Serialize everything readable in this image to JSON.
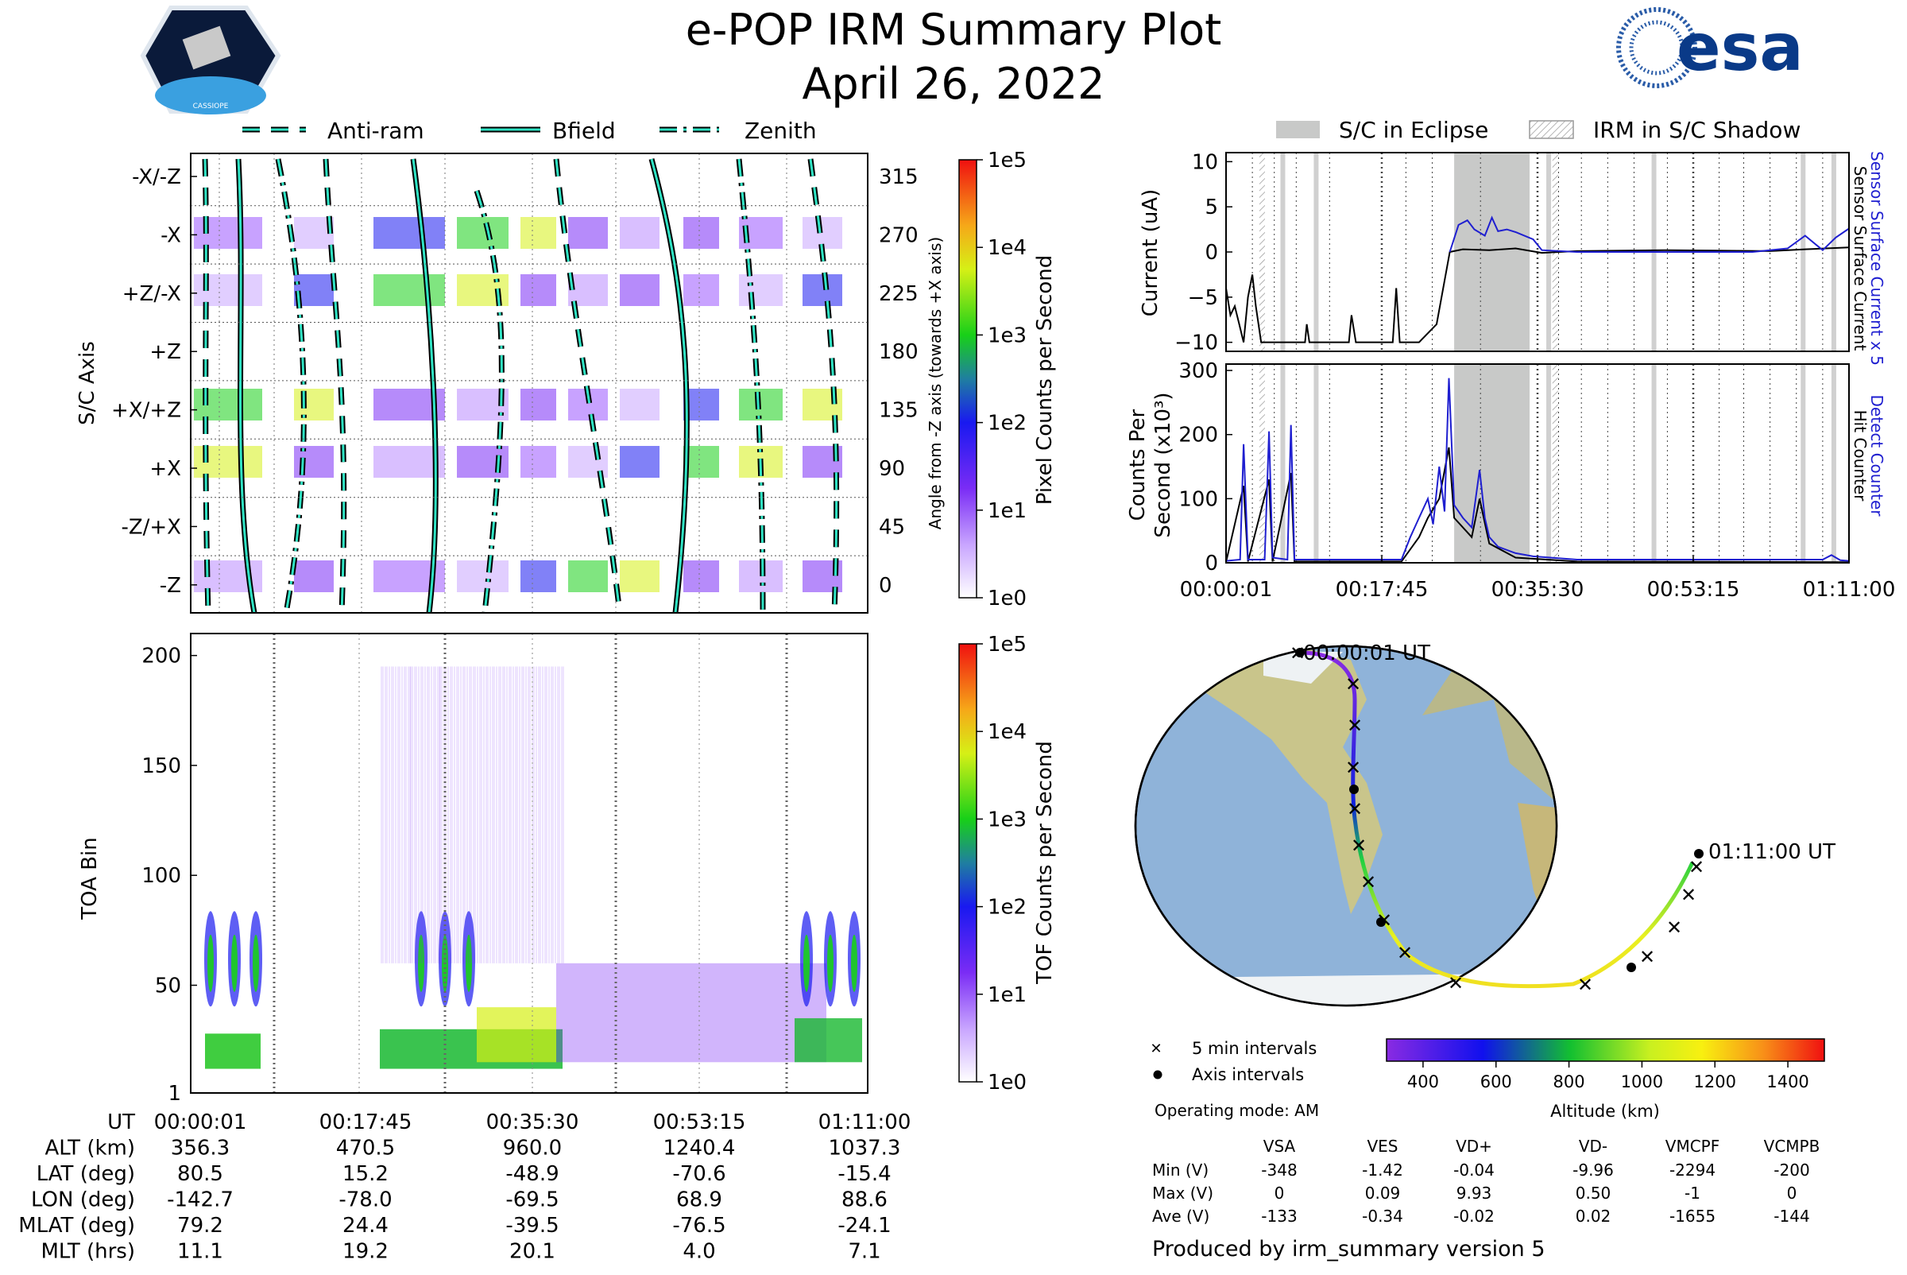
{
  "title": "e-POP IRM Summary Plot",
  "date": "April 26, 2022",
  "logo_left": "CASSIOPE",
  "logo_right": "esa",
  "colors": {
    "cyan": "#2fe3c4",
    "blue_trace": "#1f1fd0",
    "eclipse_gray": "#c8c9c8",
    "dark": "#000000"
  },
  "chart_data": [
    {
      "type": "heatmap",
      "name": "angle-panel",
      "legend": [
        "Anti-ram",
        "Bfield",
        "Zenith"
      ],
      "ylabel": "S/C Axis",
      "y_ticks_left": [
        "-X/-Z",
        "-X",
        "+Z/-X",
        "+Z",
        "+X/+Z",
        "+X",
        "-Z/+X",
        "-Z"
      ],
      "y_ticks_right": [
        "315",
        "270",
        "225",
        "180",
        "135",
        "90",
        "45",
        "0"
      ],
      "ylabel_right": "Angle from -Z axis (towards +X axis)",
      "colorbar_label": "Pixel Counts per Second",
      "colorbar_ticks": [
        "1e5",
        "1e4",
        "1e3",
        "1e2",
        "1e1",
        "1e0"
      ]
    },
    {
      "type": "heatmap",
      "name": "toa-panel",
      "ylabel": "TOA Bin",
      "y_ticks": [
        "200",
        "150",
        "100",
        "50",
        "1"
      ],
      "ylim": [
        1,
        210
      ],
      "colorbar_label": "TOF Counts per Second",
      "colorbar_ticks": [
        "1e5",
        "1e4",
        "1e3",
        "1e2",
        "1e1",
        "1e0"
      ]
    },
    {
      "type": "line",
      "name": "current-panel",
      "legend": [
        "S/C in Eclipse",
        "IRM in S/C Shadow"
      ],
      "ylabel": "Current (uA)",
      "y_ticks": [
        "10",
        "5",
        "0",
        "−5",
        "−10"
      ],
      "ylim": [
        -11,
        11
      ],
      "right_label_blue": "Sensor Surface Current x 5",
      "right_label_black": "Sensor Surface Current",
      "eclipse_minutes": [
        26.0,
        34.6
      ]
    },
    {
      "type": "line",
      "name": "counts-panel",
      "ylabel_line1": "Counts Per",
      "ylabel_line2": "Second (x10³)",
      "y_ticks": [
        "300",
        "200",
        "100",
        "0"
      ],
      "ylim": [
        0,
        310
      ],
      "right_label_blue": "Detect Counter",
      "right_label_black": "Hit Counter",
      "x_ticks": [
        "00:00:01",
        "00:17:45",
        "00:35:30",
        "00:53:15",
        "01:11:00"
      ],
      "series": [
        {
          "name": "Detect Counter",
          "points": [
            [
              0,
              3
            ],
            [
              1.6,
              5
            ],
            [
              2.0,
              185
            ],
            [
              2.5,
              5
            ],
            [
              4.4,
              5
            ],
            [
              4.9,
              205
            ],
            [
              5.3,
              8
            ],
            [
              7.0,
              5
            ],
            [
              7.4,
              215
            ],
            [
              7.8,
              5
            ],
            [
              20,
              5
            ],
            [
              21,
              40
            ],
            [
              22,
              70
            ],
            [
              23,
              100
            ],
            [
              23.6,
              60
            ],
            [
              24.3,
              150
            ],
            [
              24.9,
              80
            ],
            [
              25.4,
              288
            ],
            [
              26.0,
              90
            ],
            [
              27.0,
              70
            ],
            [
              28.0,
              55
            ],
            [
              28.9,
              145
            ],
            [
              29.5,
              70
            ],
            [
              30,
              40
            ],
            [
              31,
              25
            ],
            [
              33,
              15
            ],
            [
              35,
              10
            ],
            [
              40,
              5
            ],
            [
              60,
              5
            ],
            [
              68,
              5
            ],
            [
              69,
              12
            ],
            [
              70,
              4
            ],
            [
              71,
              3
            ]
          ]
        },
        {
          "name": "Hit Counter",
          "points": [
            [
              0,
              1
            ],
            [
              2.0,
              120
            ],
            [
              2.5,
              2
            ],
            [
              4.9,
              130
            ],
            [
              5.3,
              2
            ],
            [
              7.4,
              140
            ],
            [
              7.8,
              2
            ],
            [
              20,
              2
            ],
            [
              22,
              40
            ],
            [
              23,
              70
            ],
            [
              24.3,
              100
            ],
            [
              25.4,
              180
            ],
            [
              26,
              70
            ],
            [
              28,
              40
            ],
            [
              28.9,
              100
            ],
            [
              30,
              30
            ],
            [
              33,
              8
            ],
            [
              40,
              2
            ],
            [
              71,
              1
            ]
          ]
        }
      ]
    },
    {
      "type": "scatter",
      "name": "orbit-map",
      "start_label": "00:00:01 UT",
      "end_label": "01:11:00 UT",
      "legend_x": "5 min intervals",
      "legend_dot": "Axis intervals",
      "colorbar_label": "Altitude (km)",
      "colorbar_ticks": [
        "400",
        "600",
        "800",
        "1000",
        "1200",
        "1400"
      ],
      "colorbar_range": [
        300,
        1500
      ]
    }
  ],
  "ephemeris": {
    "headers": [
      "UT",
      "ALT (km)",
      "LAT (deg)",
      "LON (deg)",
      "MLAT (deg)",
      "MLT (hrs)"
    ],
    "columns": [
      [
        "00:00:01",
        "356.3",
        "80.5",
        "-142.7",
        "79.2",
        "11.1"
      ],
      [
        "00:17:45",
        "470.5",
        "15.2",
        "-78.0",
        "24.4",
        "19.2"
      ],
      [
        "00:35:30",
        "960.0",
        "-48.9",
        "-69.5",
        "-39.5",
        "20.1"
      ],
      [
        "00:53:15",
        "1240.4",
        "-70.6",
        "68.9",
        "-76.5",
        "4.0"
      ],
      [
        "01:11:00",
        "1037.3",
        "-15.4",
        "88.6",
        "-24.1",
        "7.1"
      ]
    ]
  },
  "operating_mode": "Operating mode: AM",
  "voltages": {
    "headers": [
      "",
      "VSA",
      "VES",
      "VD+",
      "VD-",
      "VMCPF",
      "VCMPB"
    ],
    "rows": [
      [
        "Min (V)",
        "-348",
        "-1.42",
        "-0.04",
        "-9.96",
        "-2294",
        "-200"
      ],
      [
        "Max (V)",
        "0",
        "0.09",
        "9.93",
        "0.50",
        "-1",
        "0"
      ],
      [
        "Ave (V)",
        "-133",
        "-0.34",
        "-0.02",
        "0.02",
        "-1655",
        "-144"
      ]
    ]
  },
  "footer": "Produced by irm_summary version 5"
}
